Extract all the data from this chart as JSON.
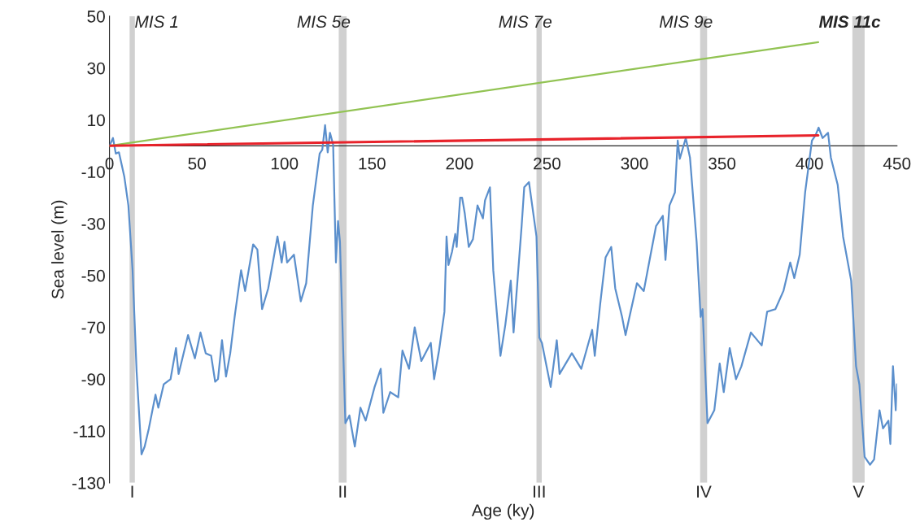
{
  "chart_data": {
    "type": "line",
    "xlabel": "Age (ky)",
    "ylabel": "Sea level (m)",
    "xlim": [
      0,
      450
    ],
    "xticks": [
      0,
      50,
      100,
      150,
      200,
      250,
      300,
      350,
      400,
      450
    ],
    "ylim": [
      -130,
      50
    ],
    "yticks": [
      -130,
      -110,
      -90,
      -70,
      -50,
      -30,
      -10,
      10,
      30,
      50
    ],
    "grid": false,
    "marker": "none",
    "line_style": "solid",
    "series": [
      {
        "color": "#5b8fcc",
        "x": [
          0,
          2.0,
          3.6,
          5.4,
          8.5,
          10.8,
          13.2,
          15.5,
          18.3,
          20.1,
          22.5,
          26.3,
          27.9,
          31,
          34.9,
          38,
          39.5,
          44.9,
          48.8,
          52,
          55,
          58.1,
          60.4,
          62,
          64.3,
          66.6,
          69,
          71.7,
          75.2,
          77.5,
          82.1,
          84.5,
          87.2,
          90.7,
          96,
          98.4,
          100,
          101.5,
          105.4,
          109.3,
          112.4,
          116.2,
          120.1,
          121.6,
          123.2,
          124.7,
          126,
          127.8,
          129.4,
          130.6,
          131.7,
          134.8,
          137.1,
          140.2,
          143.4,
          146.4,
          151.5,
          155,
          156.5,
          160.4,
          165,
          167.4,
          171.2,
          174.4,
          178.2,
          183.6,
          185.5,
          188.3,
          191.4,
          192.6,
          193.7,
          195.7,
          197.6,
          198.4,
          200.4,
          201.5,
          203,
          205.3,
          207.7,
          210.3,
          213.4,
          214.6,
          217.4,
          219.3,
          223.4,
          226.2,
          229.3,
          230.9,
          235.5,
          237,
          239.7,
          244,
          245.6,
          247.1,
          252.1,
          255.6,
          257.2,
          264.2,
          269.6,
          275.8,
          277.3,
          280.4,
          283.5,
          286.7,
          289,
          292.9,
          294.9,
          296.8,
          301.4,
          305.3,
          309.2,
          312.3,
          316.2,
          317.7,
          320,
          323.1,
          324.7,
          325.9,
          329.3,
          331.7,
          335.5,
          337.8,
          338.9,
          341.7,
          345.6,
          348.7,
          351,
          354.4,
          358,
          361.1,
          366.5,
          372.7,
          375.8,
          380.5,
          385.1,
          389,
          391.3,
          394.4,
          397.5,
          401.4,
          403.4,
          405.2,
          407.5,
          410.6,
          412.2,
          416.1,
          419.2,
          423.8,
          426.6,
          428.5,
          431.5,
          434.6,
          436.9,
          440,
          442,
          445.1,
          446.2,
          447.7,
          449.3,
          450
        ],
        "values": [
          0,
          3,
          -3,
          -2.5,
          -12,
          -23,
          -48,
          -87,
          -119,
          -116,
          -109,
          -96,
          -101,
          -92,
          -90,
          -78,
          -88,
          -73,
          -82,
          -72,
          -80,
          -81,
          -91,
          -90,
          -75,
          -89,
          -80,
          -65,
          -48,
          -56,
          -38,
          -40,
          -63,
          -55,
          -35,
          -45,
          -37,
          -45,
          -42,
          -60,
          -53,
          -23,
          -3,
          -1.5,
          8,
          -2.5,
          5,
          0.5,
          -45,
          -29,
          -37,
          -107,
          -104,
          -116,
          -101,
          -106,
          -93,
          -86,
          -103,
          -95,
          -97,
          -79,
          -86,
          -70,
          -83,
          -76,
          -90,
          -79,
          -64,
          -35,
          -46,
          -41,
          -34,
          -39,
          -20,
          -20,
          -26,
          -39,
          -36,
          -23,
          -28,
          -21,
          -16,
          -48,
          -81,
          -69,
          -52,
          -72,
          -31,
          -16,
          -14,
          -35,
          -74,
          -76,
          -93,
          -75,
          -88,
          -80,
          -86,
          -71,
          -81,
          -61,
          -43,
          -39,
          -55,
          -66,
          -73,
          -67,
          -53,
          -56,
          -42,
          -31,
          -27,
          -44,
          -23,
          -18,
          2,
          -5,
          3,
          -4.5,
          -37,
          -66,
          -63,
          -107,
          -102,
          -84,
          -95,
          -78,
          -90,
          -85,
          -72,
          -77,
          -64,
          -63,
          -56,
          -45,
          -51,
          -42,
          -18,
          2,
          4,
          7,
          3,
          5,
          -4.5,
          -15,
          -35,
          -52,
          -85,
          -92,
          -120,
          -123,
          -121,
          -102,
          -109,
          -106,
          -115,
          -85,
          -102,
          -92
        ]
      },
      {
        "color": "#92c353",
        "x": [
          0,
          405
        ],
        "values": [
          0,
          40
        ]
      },
      {
        "color": "#e8232b",
        "x": [
          0,
          405
        ],
        "values": [
          0,
          4
        ]
      }
    ],
    "bands": [
      {
        "axis": "x",
        "from": 11.5,
        "to": 14.5,
        "label": "I",
        "color": "#d0d0d0"
      },
      {
        "axis": "x",
        "from": 131,
        "to": 135.5,
        "label": "II",
        "color": "#d0d0d0"
      },
      {
        "axis": "x",
        "from": 244,
        "to": 247,
        "label": "III",
        "color": "#d0d0d0"
      },
      {
        "axis": "x",
        "from": 337.5,
        "to": 341.5,
        "label": "IV",
        "color": "#d0d0d0"
      },
      {
        "axis": "x",
        "from": 424.5,
        "to": 431.5,
        "label": "V",
        "color": "#d0d0d0"
      }
    ],
    "annotations": [
      "MIS 1",
      "MIS 5e",
      "MIS 7e",
      "MIS 9e",
      "MIS 11c"
    ]
  }
}
